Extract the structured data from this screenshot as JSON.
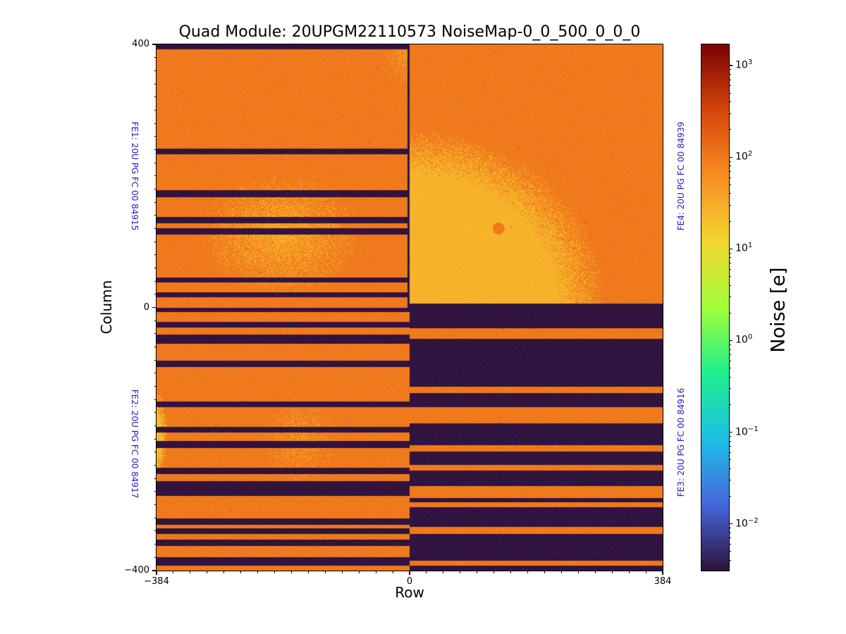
{
  "chart_data": {
    "type": "heatmap",
    "title": "Quad Module: 20UPGM22110573 NoiseMap-0_0_500_0_0_0",
    "xlabel": "Row",
    "ylabel": "Column",
    "x_range": [
      -384,
      384
    ],
    "y_range": [
      -400,
      400
    ],
    "x_major_ticks": [
      {
        "value": -384,
        "label": "−384"
      },
      {
        "value": 0,
        "label": "0"
      },
      {
        "value": 384,
        "label": "384"
      }
    ],
    "y_major_ticks": [
      {
        "value": 400,
        "label": "400"
      },
      {
        "value": 0,
        "label": "0"
      },
      {
        "value": -400,
        "label": "−400"
      }
    ],
    "x_minor_step": 25.6,
    "y_minor_step": 20,
    "grid": false,
    "colorbar": {
      "label": "Noise [e]",
      "scale": "log",
      "min": 0.0031,
      "max": 1700,
      "tick_exponents": [
        3,
        2,
        1,
        0,
        -1,
        -2
      ],
      "tick_labels": [
        "10^3",
        "10^2",
        "10^1",
        "10^0",
        "10^-1",
        "10^-2"
      ],
      "colormap": "turbo",
      "colormap_stops": [
        [
          0.0,
          "#30123b"
        ],
        [
          0.125,
          "#4668dd"
        ],
        [
          0.25,
          "#1fbfe7"
        ],
        [
          0.375,
          "#1ff08e"
        ],
        [
          0.5,
          "#a2fe39"
        ],
        [
          0.625,
          "#f4d731"
        ],
        [
          0.75,
          "#f98e23"
        ],
        [
          0.875,
          "#d8460c"
        ],
        [
          1.0,
          "#7a0403"
        ]
      ]
    },
    "background_noise_e": 100,
    "masked_value_e": 0.0031,
    "noise_jitter_decades": 0.035,
    "specks": {
      "dark_density": 0.0006,
      "bright_density": 0.00018
    },
    "fe_label_color": "#2222cc",
    "frontends": [
      {
        "id": "FE1",
        "label": "FE1: 20U PG FC 00 84915",
        "row_range": [
          -384,
          0
        ],
        "col_range": [
          0,
          400
        ],
        "base": "active",
        "masked_col_bands": [
          [
            392,
            400
          ],
          [
            233,
            241
          ],
          [
            168,
            178
          ],
          [
            128,
            138
          ],
          [
            111,
            120
          ],
          [
            38,
            46
          ],
          [
            15,
            23
          ]
        ],
        "masked_row_bands": [
          [
            -3,
            0
          ]
        ],
        "blobs": [
          {
            "shape": "diffuse",
            "row_c": -195,
            "col_c": 110,
            "row_r": 125,
            "col_r": 95,
            "value_e": 30,
            "density": 0.9
          },
          {
            "shape": "diffuse",
            "row_c": -8,
            "col_c": 395,
            "row_r": 35,
            "col_r": 60,
            "value_e": 38,
            "density": 0.65
          }
        ]
      },
      {
        "id": "FE2",
        "label": "FE2: 20U PG FC 00 84917",
        "row_range": [
          -384,
          0
        ],
        "col_range": [
          -400,
          0
        ],
        "base": "active",
        "masked_col_bands": [
          [
            -7,
            0
          ],
          [
            -31,
            -22
          ],
          [
            -55,
            -41
          ],
          [
            -90,
            -81
          ],
          [
            -152,
            -143
          ],
          [
            -190,
            -182
          ],
          [
            -214,
            -203
          ],
          [
            -253,
            -244
          ],
          [
            -286,
            -264
          ],
          [
            -330,
            -321
          ],
          [
            -344,
            -336
          ],
          [
            -362,
            -353
          ],
          [
            -392,
            -380
          ]
        ],
        "masked_row_bands": [],
        "blobs": [
          {
            "shape": "solid",
            "row_c": -388,
            "col_c": -195,
            "row_r": 16,
            "col_r": 52,
            "value_e": 22,
            "edge_fuzz": 0.35
          },
          {
            "shape": "diffuse",
            "row_c": -165,
            "col_c": -200,
            "row_r": 62,
            "col_r": 72,
            "value_e": 35,
            "density": 0.45
          }
        ]
      },
      {
        "id": "FE3",
        "label": "FE3: 20U PG FC 00 84916",
        "row_range": [
          0,
          384
        ],
        "col_range": [
          -400,
          0
        ],
        "base": "masked",
        "active_col_bands": [
          [
            -48,
            -32
          ],
          [
            -130,
            -120
          ],
          [
            -176,
            -152
          ],
          [
            -219,
            -209
          ],
          [
            -248,
            -239
          ],
          [
            -290,
            -271
          ],
          [
            -304,
            -296
          ],
          [
            -344,
            -334
          ],
          [
            -393,
            -385
          ]
        ],
        "blobs": []
      },
      {
        "id": "FE4",
        "label": "FE4: 20U PG FC 00 84939",
        "row_range": [
          0,
          384
        ],
        "col_range": [
          0,
          400
        ],
        "base": "active",
        "masked_col_bands": [
          [
            0,
            6
          ]
        ],
        "masked_row_bands": [],
        "blobs": [
          {
            "shape": "solid",
            "row_c": 8,
            "col_c": 6,
            "row_r": 252,
            "col_r": 230,
            "value_e": 27,
            "edge_fuzz": 0.15,
            "holes": [
              {
                "row_c": 135,
                "col_c": 120,
                "r": 9
              }
            ]
          }
        ]
      }
    ]
  }
}
